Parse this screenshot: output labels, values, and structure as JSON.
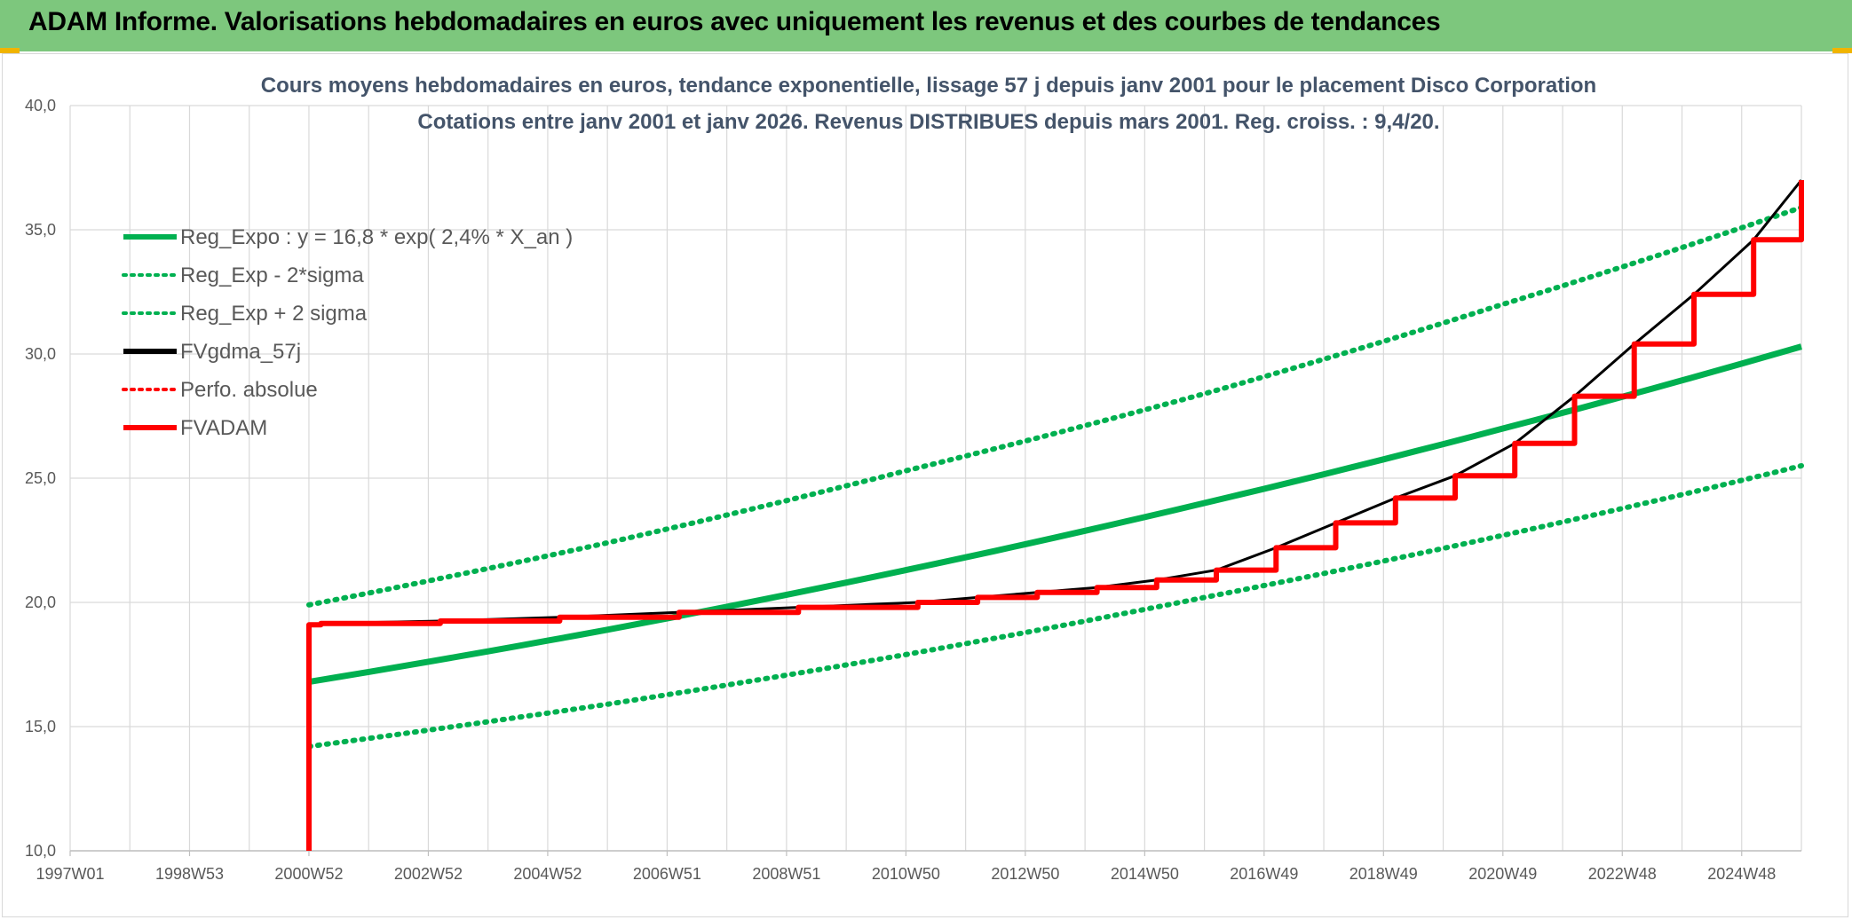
{
  "header": {
    "title": "ADAM Informe. Valorisations hebdomadaires en euros avec uniquement les revenus et des courbes de tendances"
  },
  "colors": {
    "header_bg": "#7dc77d",
    "green": "#00b050",
    "red": "#ff0000",
    "black": "#000000",
    "grid": "#d9d9d9"
  },
  "chart_data": {
    "type": "line",
    "title_line1": "Cours moyens hebdomadaires en euros, tendance exponentielle, lissage 57 j depuis janv 2001 pour le placement Disco Corporation",
    "title_line2": "Cotations entre janv 2001 et janv 2026. Revenus DISTRIBUES depuis mars 2001. Reg. croiss. : 9,4/20.",
    "xlabel": "",
    "ylabel": "",
    "ylim": [
      10,
      40
    ],
    "xlim": [
      1997.0,
      2026.0
    ],
    "y_ticks": [
      "10,0",
      "15,0",
      "20,0",
      "25,0",
      "30,0",
      "35,0",
      "40,0"
    ],
    "x_ticks": [
      "1997W01",
      "1998W53",
      "2000W52",
      "2002W52",
      "2004W52",
      "2006W51",
      "2008W51",
      "2010W50",
      "2012W50",
      "2014W50",
      "2016W49",
      "2018W49",
      "2020W49",
      "2022W48",
      "2024W48"
    ],
    "grid": true,
    "legend_position": "top-left",
    "legend": [
      {
        "name": "Reg_Expo : y = 16,8 * exp( 2,4% *  X_an )",
        "color": "#00b050",
        "style": "solid"
      },
      {
        "name": "Reg_Exp - 2*sigma",
        "color": "#00b050",
        "style": "dotted"
      },
      {
        "name": "Reg_Exp + 2 sigma",
        "color": "#00b050",
        "style": "dotted"
      },
      {
        "name": "FVgdma_57j",
        "color": "#000000",
        "style": "solid"
      },
      {
        "name": "Perfo. absolue",
        "color": "#ff0000",
        "style": "dotted"
      },
      {
        "name": "FVADAM",
        "color": "#ff0000",
        "style": "solid"
      }
    ],
    "series": [
      {
        "name": "Reg_Expo",
        "x": [
          2001,
          2006,
          2011,
          2016,
          2021,
          2026
        ],
        "values": [
          16.8,
          18.9,
          21.3,
          24.0,
          27.0,
          30.3
        ]
      },
      {
        "name": "Reg_Exp - 2*sigma",
        "x": [
          2001,
          2006,
          2011,
          2016,
          2021,
          2026
        ],
        "values": [
          14.2,
          15.9,
          17.9,
          20.2,
          22.7,
          25.5
        ]
      },
      {
        "name": "Reg_Exp + 2 sigma",
        "x": [
          2001,
          2006,
          2011,
          2016,
          2021,
          2026
        ],
        "values": [
          19.9,
          22.4,
          25.3,
          28.4,
          32.0,
          35.9
        ]
      },
      {
        "name": "FVADAM",
        "x": [
          2001.0,
          2001.0,
          2001.2,
          2003.2,
          2005.2,
          2007.2,
          2009.2,
          2011.2,
          2012.2,
          2013.2,
          2014.2,
          2015.2,
          2016.2,
          2017.2,
          2018.2,
          2019.2,
          2020.2,
          2021.2,
          2022.2,
          2023.2,
          2024.2,
          2025.2,
          2026.0
        ],
        "values": [
          10.0,
          19.1,
          19.15,
          19.25,
          19.4,
          19.6,
          19.8,
          20.0,
          20.2,
          20.4,
          20.6,
          20.9,
          21.3,
          22.2,
          23.2,
          24.2,
          25.1,
          26.4,
          28.3,
          30.4,
          32.4,
          34.6,
          37.0
        ]
      }
    ]
  }
}
